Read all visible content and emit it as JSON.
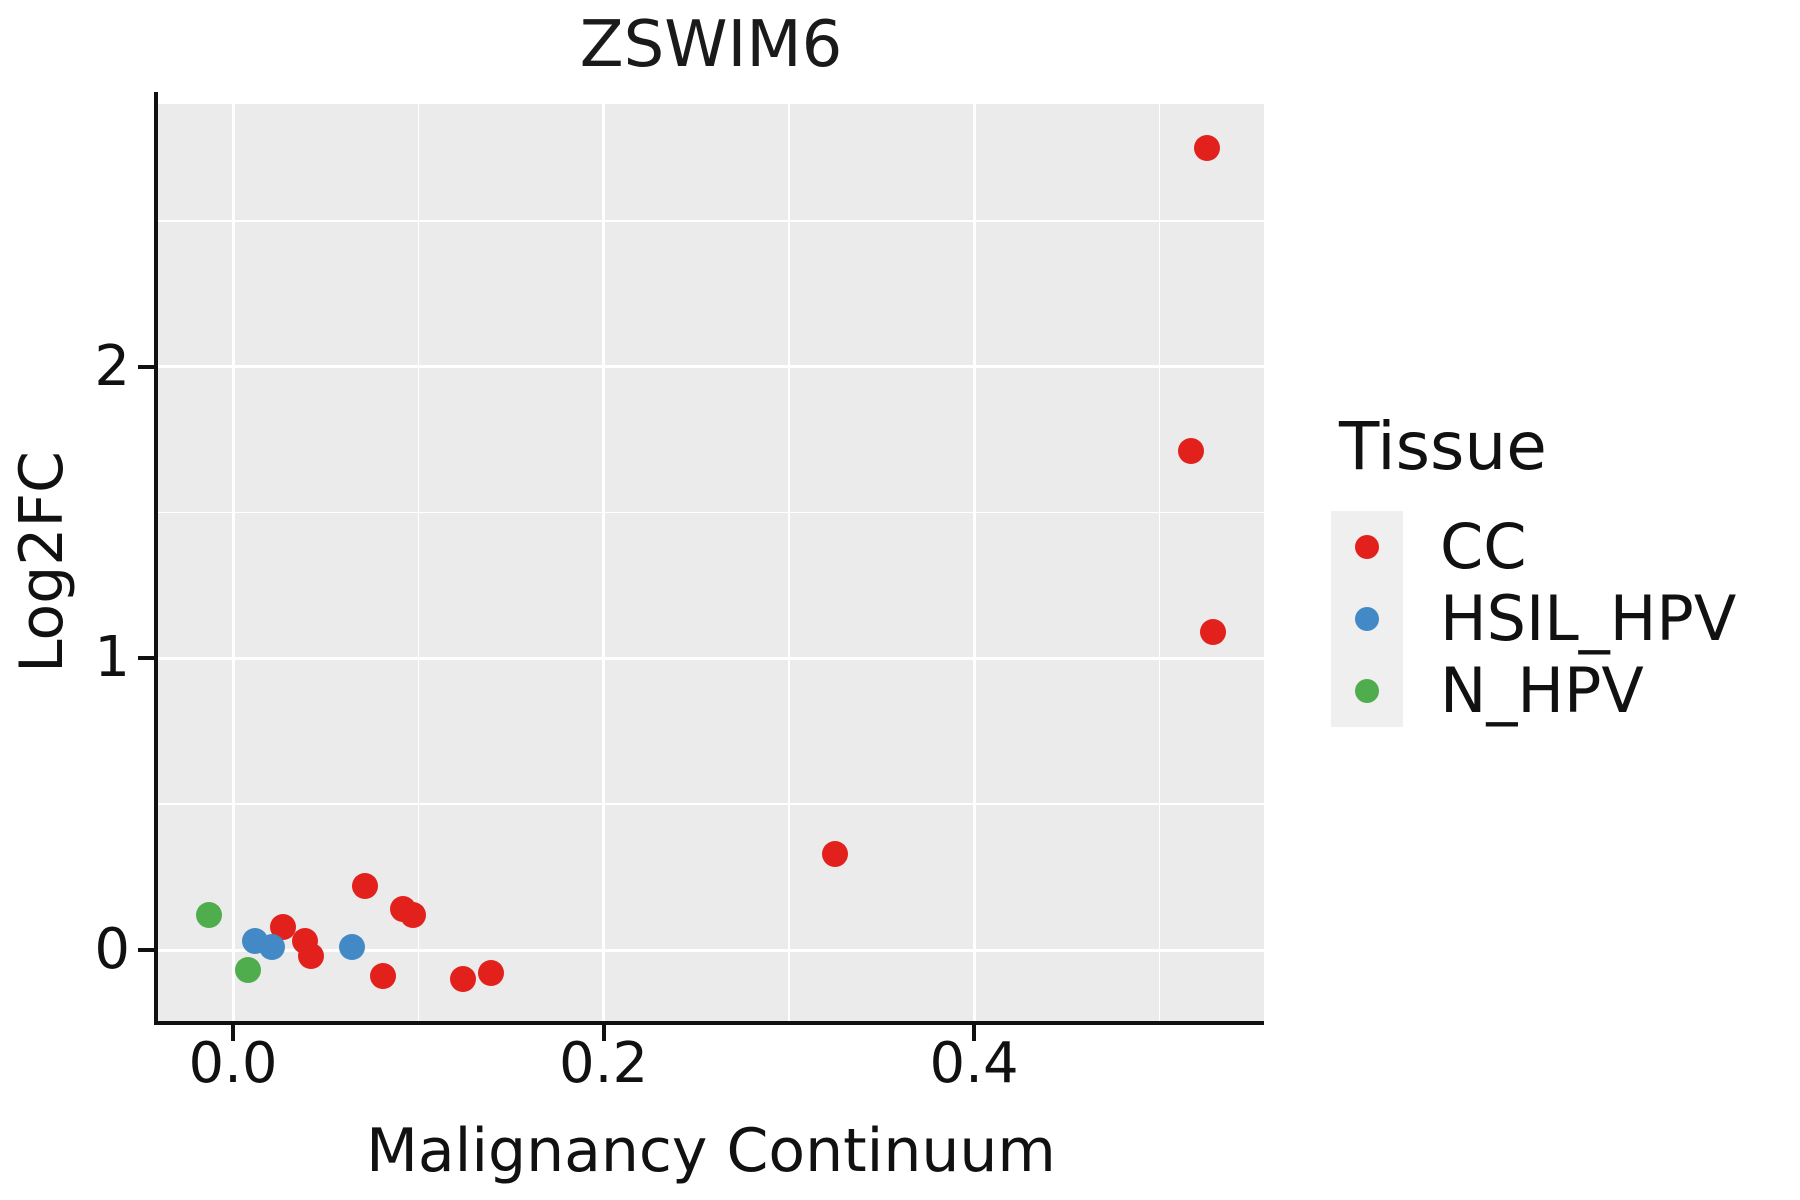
{
  "title": "ZSWIM6",
  "x_axis": {
    "label": "Malignancy Continuum",
    "ticks": [
      "0.0",
      "0.2",
      "0.4"
    ],
    "tick_values": [
      0.0,
      0.2,
      0.4
    ],
    "minor_tick_values": [
      0.1,
      0.3,
      0.5
    ]
  },
  "y_axis": {
    "label": "Log2FC",
    "ticks": [
      "0",
      "1",
      "2"
    ],
    "tick_values": [
      0,
      1,
      2
    ],
    "minor_tick_values": [
      0.5,
      1.5,
      2.5
    ]
  },
  "legend": {
    "title": "Tissue",
    "items": [
      {
        "label": "CC",
        "color": "#E2211C"
      },
      {
        "label": "HSIL_HPV",
        "color": "#4289C6"
      },
      {
        "label": "N_HPV",
        "color": "#4FAD4D"
      }
    ]
  },
  "colors": {
    "panel_background": "#EBEBEB",
    "gridline": "#FFFFFF",
    "legend_key_background": "#EFEFEF",
    "axis_spine": "#111111"
  },
  "chart_data": {
    "type": "scatter",
    "title": "ZSWIM6",
    "xlabel": "Malignancy Continuum",
    "ylabel": "Log2FC",
    "xlim": [
      -0.0405,
      0.5565
    ],
    "ylim": [
      -0.2435,
      2.9015
    ],
    "grid": true,
    "legend_position": "right",
    "series": [
      {
        "name": "CC",
        "color": "#E2211C",
        "points": [
          [
            0.027,
            0.08
          ],
          [
            0.039,
            0.03
          ],
          [
            0.042,
            -0.02
          ],
          [
            0.071,
            0.22
          ],
          [
            0.081,
            -0.09
          ],
          [
            0.092,
            0.14
          ],
          [
            0.097,
            0.12
          ],
          [
            0.124,
            -0.1
          ],
          [
            0.139,
            -0.08
          ],
          [
            0.325,
            0.33
          ],
          [
            0.517,
            1.71
          ],
          [
            0.526,
            2.75
          ],
          [
            0.529,
            1.09
          ]
        ]
      },
      {
        "name": "HSIL_HPV",
        "color": "#4289C6",
        "points": [
          [
            0.012,
            0.03
          ],
          [
            0.021,
            0.01
          ],
          [
            0.064,
            0.01
          ]
        ]
      },
      {
        "name": "N_HPV",
        "color": "#4FAD4D",
        "points": [
          [
            -0.013,
            0.12
          ],
          [
            0.008,
            -0.07
          ]
        ]
      }
    ]
  }
}
